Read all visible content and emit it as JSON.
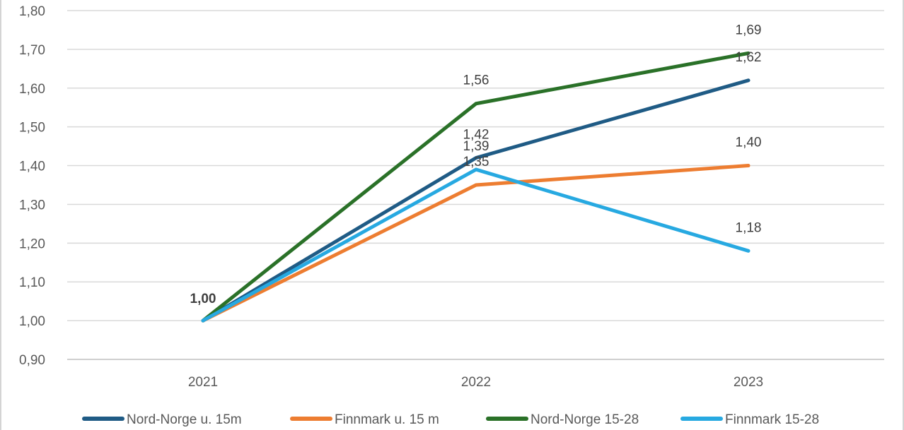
{
  "colors": {
    "Nord-Norge u. 15m": "#1f5b85",
    "Finnmark u. 15 m": "#ed7d31",
    "Nord-Norge 15-28": "#2a7128",
    "Finnmark 15-28": "#27a9e1",
    "grid": "#d9d9d9",
    "axis": "#bfbfbf"
  },
  "chart_data": {
    "type": "line",
    "categories": [
      "2021",
      "2022",
      "2023"
    ],
    "ylim": [
      0.9,
      1.8
    ],
    "yticks": [
      "0,90",
      "1,00",
      "1,10",
      "1,20",
      "1,30",
      "1,40",
      "1,50",
      "1,60",
      "1,70",
      "1,80"
    ],
    "grid": true,
    "legend_position": "bottom",
    "series": [
      {
        "name": "Nord-Norge u. 15m",
        "values": [
          1.0,
          1.42,
          1.62
        ],
        "labels": [
          "",
          "1,42",
          "1,62"
        ]
      },
      {
        "name": "Finnmark u. 15 m",
        "values": [
          1.0,
          1.35,
          1.4
        ],
        "labels": [
          "",
          "1,35",
          "1,40"
        ]
      },
      {
        "name": "Nord-Norge 15-28",
        "values": [
          1.0,
          1.56,
          1.69
        ],
        "labels": [
          "",
          "1,56",
          "1,69"
        ]
      },
      {
        "name": "Finnmark 15-28",
        "values": [
          1.0,
          1.39,
          1.18
        ],
        "labels": [
          "",
          "1,39",
          "1,18"
        ]
      }
    ],
    "start_label": "1,00"
  }
}
